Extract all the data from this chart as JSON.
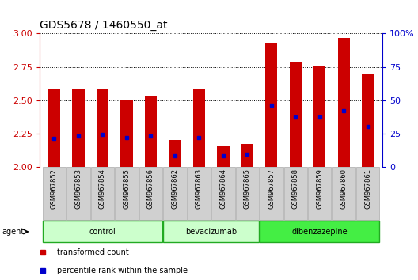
{
  "title": "GDS5678 / 1460550_at",
  "samples": [
    "GSM967852",
    "GSM967853",
    "GSM967854",
    "GSM967855",
    "GSM967856",
    "GSM967862",
    "GSM967863",
    "GSM967864",
    "GSM967865",
    "GSM967857",
    "GSM967858",
    "GSM967859",
    "GSM967860",
    "GSM967861"
  ],
  "transformed_counts": [
    2.58,
    2.58,
    2.58,
    2.5,
    2.53,
    2.2,
    2.58,
    2.15,
    2.17,
    2.93,
    2.79,
    2.76,
    2.97,
    2.7
  ],
  "percentile_ranks": [
    21,
    23,
    24,
    22,
    23,
    8,
    22,
    8,
    9,
    46,
    37,
    37,
    42,
    30
  ],
  "ylim_left": [
    2.0,
    3.0
  ],
  "ylim_right": [
    0,
    100
  ],
  "yticks_left": [
    2.0,
    2.25,
    2.5,
    2.75,
    3.0
  ],
  "yticks_right": [
    0,
    25,
    50,
    75,
    100
  ],
  "groups": [
    {
      "label": "control",
      "indices": [
        0,
        1,
        2,
        3,
        4
      ],
      "color": "#ccffcc"
    },
    {
      "label": "bevacizumab",
      "indices": [
        5,
        6,
        7,
        8
      ],
      "color": "#ccffcc"
    },
    {
      "label": "dibenzazepine",
      "indices": [
        9,
        10,
        11,
        12,
        13
      ],
      "color": "#44ee44"
    }
  ],
  "bar_color": "#cc0000",
  "percentile_color": "#0000cc",
  "bar_width": 0.5,
  "bg_color": "#ffffff",
  "tick_bg_color": "#d0d0d0",
  "left_axis_color": "#cc0000",
  "right_axis_color": "#0000cc",
  "legend_items": [
    {
      "label": "transformed count",
      "color": "#cc0000"
    },
    {
      "label": "percentile rank within the sample",
      "color": "#0000cc"
    }
  ],
  "group_border_color": "#22aa22",
  "tick_label_fontsize": 6,
  "axis_label_fontsize": 8,
  "title_fontsize": 10
}
